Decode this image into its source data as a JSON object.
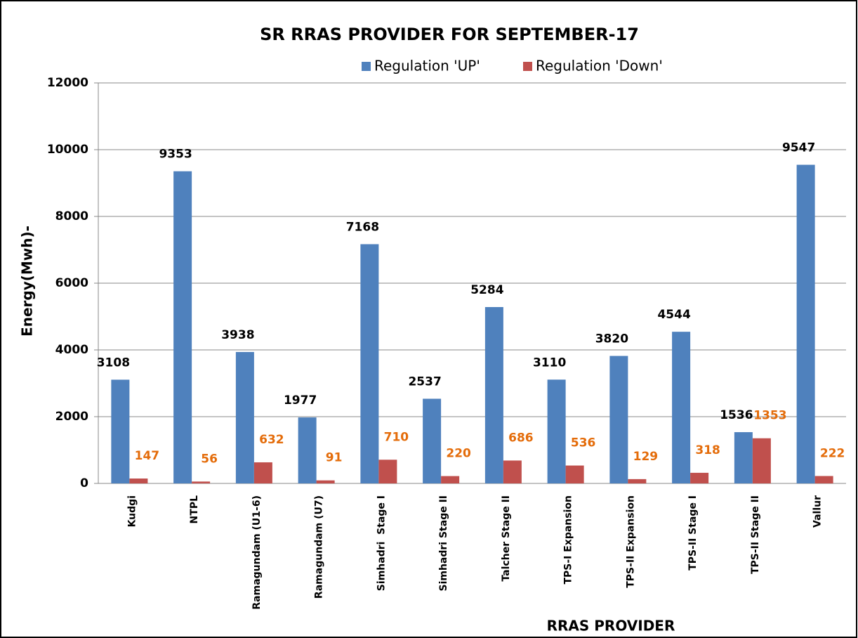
{
  "chart_data": {
    "type": "bar",
    "title": "SR RRAS PROVIDER FOR SEPTEMBER-17",
    "x_label": "RRAS PROVIDER",
    "y_label": "Energy(Mwh)-",
    "categories": [
      "Kudgi",
      "NTPL",
      "Ramagundam (U1-6)",
      "Ramagundam (U7)",
      "Simhadri  Stage I",
      "Simhadri Stage II",
      "Talcher Stage II",
      "TPS-I Expansion",
      "TPS-II Expansion",
      "TPS-II Stage I",
      "TPS-II Stage II",
      "Vallur"
    ],
    "series": [
      {
        "name": "Regulation 'UP'",
        "color": "#4f81bd",
        "label_color": "#000000",
        "values": [
          3108,
          9353,
          3938,
          1977,
          7168,
          2537,
          5284,
          3110,
          3820,
          4544,
          1536,
          9547
        ]
      },
      {
        "name": "Regulation 'Down'",
        "color": "#c0504d",
        "label_color": "#e46c0a",
        "values": [
          147,
          56,
          632,
          91,
          710,
          220,
          686,
          536,
          129,
          318,
          1353,
          222
        ]
      }
    ],
    "ylim": [
      0,
      12000
    ],
    "yticks": [
      0,
      2000,
      4000,
      6000,
      8000,
      10000,
      12000
    ],
    "grid": true,
    "legend": "top"
  }
}
